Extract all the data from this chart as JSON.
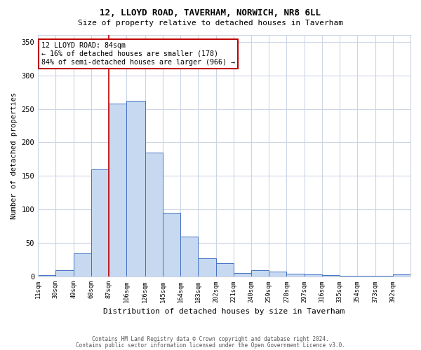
{
  "title1": "12, LLOYD ROAD, TAVERHAM, NORWICH, NR8 6LL",
  "title2": "Size of property relative to detached houses in Taverham",
  "xlabel": "Distribution of detached houses by size in Taverham",
  "ylabel": "Number of detached properties",
  "categories": [
    "11sqm",
    "30sqm",
    "49sqm",
    "68sqm",
    "87sqm",
    "106sqm",
    "126sqm",
    "145sqm",
    "164sqm",
    "183sqm",
    "202sqm",
    "221sqm",
    "240sqm",
    "259sqm",
    "278sqm",
    "297sqm",
    "316sqm",
    "335sqm",
    "354sqm",
    "373sqm",
    "392sqm"
  ],
  "bar_values": [
    2,
    10,
    35,
    160,
    258,
    262,
    185,
    95,
    60,
    27,
    20,
    6,
    10,
    8,
    5,
    3,
    2,
    1,
    1,
    1,
    3
  ],
  "bar_color": "#c6d9f0",
  "bar_edge_color": "#4472c4",
  "vline_x": 87,
  "vline_color": "#c00000",
  "annotation_line1": "12 LLOYD ROAD: 84sqm",
  "annotation_line2": "← 16% of detached houses are smaller (178)",
  "annotation_line3": "84% of semi-detached houses are larger (966) →",
  "annotation_box_color": "#ffffff",
  "annotation_box_edge_color": "#c00000",
  "ylim": [
    0,
    360
  ],
  "yticks": [
    0,
    50,
    100,
    150,
    200,
    250,
    300,
    350
  ],
  "footer1": "Contains HM Land Registry data © Crown copyright and database right 2024.",
  "footer2": "Contains public sector information licensed under the Open Government Licence v3.0.",
  "bg_color": "#ffffff",
  "grid_color": "#cdd5e5",
  "bin_edges": [
    11,
    30,
    49,
    68,
    87,
    106,
    126,
    145,
    164,
    183,
    202,
    221,
    240,
    259,
    278,
    297,
    316,
    335,
    354,
    373,
    392,
    411
  ]
}
